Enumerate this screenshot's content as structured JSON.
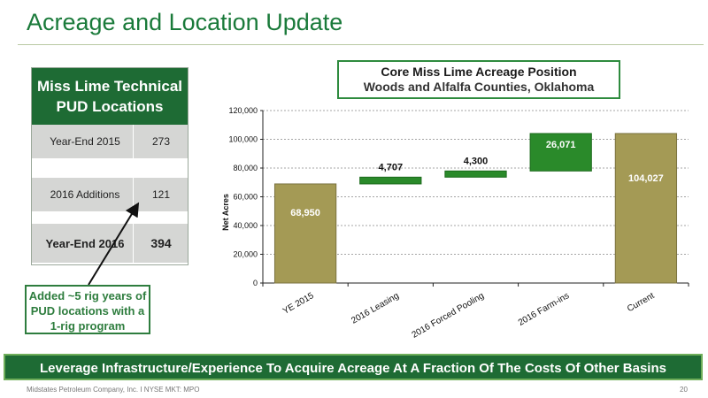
{
  "slide": {
    "title": "Acreage and Location Update",
    "banner": "Leverage Infrastructure/Experience To Acquire Acreage At A Fraction Of The Costs Of Other Basins",
    "footer": "Midstates Petroleum Company, Inc. I NYSE MKT: MPO",
    "page_number": "20"
  },
  "pud_table": {
    "header": "Miss Lime Technical PUD Locations",
    "rows": [
      {
        "label": "Year-End 2015",
        "value": "273"
      },
      {
        "label": "2016 Additions",
        "value": "121"
      },
      {
        "label": "Year-End 2016",
        "value": "394"
      }
    ]
  },
  "callout": "Added ~5 rig years of PUD locations with a 1-rig program",
  "colors": {
    "brand_green": "#1e6b34",
    "bar_gold": "#a49a55",
    "bar_green": "#2a8a2a"
  },
  "chart_data": {
    "type": "bar",
    "subtype": "waterfall",
    "title": "Core Miss Lime Acreage Position",
    "subtitle": "Woods and Alfalfa Counties, Oklahoma",
    "xlabel": "",
    "ylabel": "Net Acres",
    "ylim": [
      0,
      120000
    ],
    "yticks": [
      0,
      20000,
      40000,
      60000,
      80000,
      100000,
      120000
    ],
    "ytick_labels": [
      "0",
      "20,000",
      "40,000",
      "60,000",
      "80,000",
      "100,000",
      "120,000"
    ],
    "grid": true,
    "categories": [
      "YE 2015",
      "2016 Leasing",
      "2016 Forced Pooling",
      "2016 Farm-ins",
      "Current"
    ],
    "bars": [
      {
        "category": "YE 2015",
        "kind": "total",
        "value": 68950,
        "label": "68,950"
      },
      {
        "category": "2016 Leasing",
        "kind": "increment",
        "value": 4707,
        "label": "4,707"
      },
      {
        "category": "2016 Forced Pooling",
        "kind": "increment",
        "value": 4300,
        "label": "4,300"
      },
      {
        "category": "2016 Farm-ins",
        "kind": "increment",
        "value": 26071,
        "label": "26,071"
      },
      {
        "category": "Current",
        "kind": "total",
        "value": 104027,
        "label": "104,027"
      }
    ]
  }
}
